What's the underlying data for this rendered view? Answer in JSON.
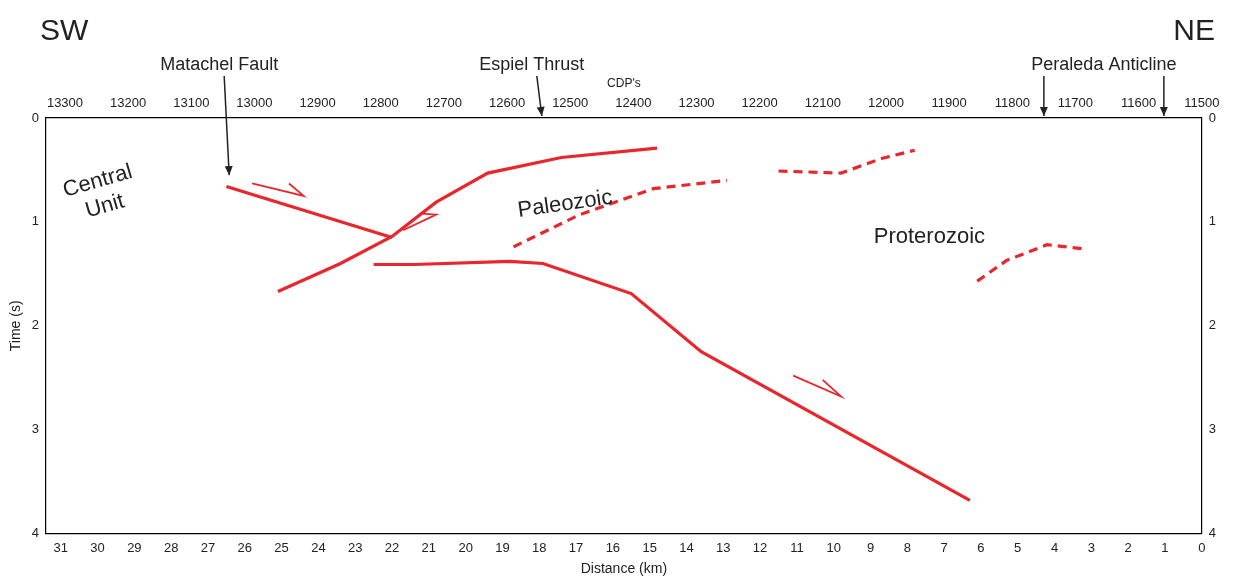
{
  "chart_data": {
    "type": "line",
    "directions": [
      "SW",
      "NE"
    ],
    "x_label": "Distance (km)",
    "y_label": "Time (s)",
    "x2_label": "CDP's",
    "xlim": [
      31.4,
      0
    ],
    "xticks": [
      31,
      30,
      29,
      28,
      27,
      26,
      25,
      24,
      23,
      22,
      21,
      20,
      19,
      18,
      17,
      16,
      15,
      14,
      13,
      12,
      11,
      10,
      9,
      8,
      7,
      6,
      5,
      4,
      3,
      2,
      1,
      0
    ],
    "x2lim": [
      13330,
      11500
    ],
    "x2ticks": [
      13300,
      13200,
      13100,
      13000,
      12900,
      12800,
      12700,
      12600,
      12500,
      12400,
      12300,
      12200,
      12100,
      12000,
      11900,
      11800,
      11700,
      11600,
      11500
    ],
    "ylim": [
      4,
      0
    ],
    "yticks": [
      0,
      1,
      2,
      3,
      4
    ],
    "grid": false,
    "series": [
      {
        "color": "#e8262b",
        "line_style": "solid",
        "x": [
          26.5,
          22.0
        ],
        "values": [
          0.66,
          1.15
        ],
        "sense": {
          "x": [
            25.8,
            24.4,
            24.8
          ],
          "values": [
            0.63,
            0.75,
            0.63
          ]
        }
      },
      {
        "color": "#e8262b",
        "line_style": "solid",
        "x": [
          25.1,
          23.4,
          22.0,
          20.8,
          19.4,
          17.4,
          14.8
        ],
        "values": [
          1.67,
          1.4,
          1.14,
          0.81,
          0.53,
          0.38,
          0.29
        ],
        "sense": {
          "x": [
            21.7,
            20.8,
            21.2
          ],
          "values": [
            1.08,
            0.93,
            0.92
          ]
        }
      },
      {
        "color": "#e8262b",
        "line_style": "solid",
        "x": [
          22.5,
          21.4,
          18.8,
          17.9,
          15.5,
          13.6,
          6.3
        ],
        "values": [
          1.41,
          1.41,
          1.38,
          1.4,
          1.69,
          2.25,
          3.68
        ],
        "sense": {
          "x": [
            11.1,
            9.8,
            10.3
          ],
          "values": [
            2.48,
            2.68,
            2.52
          ]
        }
      },
      {
        "color": "#e8262b",
        "line_style": "dashed",
        "x": [
          18.7,
          16.9,
          14.9,
          12.9
        ],
        "values": [
          1.24,
          0.93,
          0.68,
          0.6
        ]
      },
      {
        "color": "#e8262b",
        "line_style": "dashed",
        "x": [
          11.5,
          9.8,
          8.7,
          7.8
        ],
        "values": [
          0.51,
          0.53,
          0.39,
          0.31
        ]
      },
      {
        "color": "#e8262b",
        "line_style": "dashed",
        "x": [
          6.1,
          5.3,
          4.2,
          3.2
        ],
        "values": [
          1.57,
          1.37,
          1.22,
          1.26
        ]
      }
    ],
    "annotations": [
      {
        "text": "Central Unit",
        "x": 29.9,
        "y": 0.73
      },
      {
        "text": "Paleozoic",
        "x": 17.3,
        "y": 0.83
      },
      {
        "text": "Proterozoic",
        "x": 7.4,
        "y": 1.14
      }
    ],
    "top_labels": [
      {
        "text": "Matachel Fault",
        "cdp": [
          13040
        ],
        "time": 0.55
      },
      {
        "text": "Espiel Thrust",
        "cdp": [
          12545
        ]
      },
      {
        "text": "Peraleda Anticline",
        "cdp": [
          11750,
          11560
        ]
      }
    ]
  }
}
